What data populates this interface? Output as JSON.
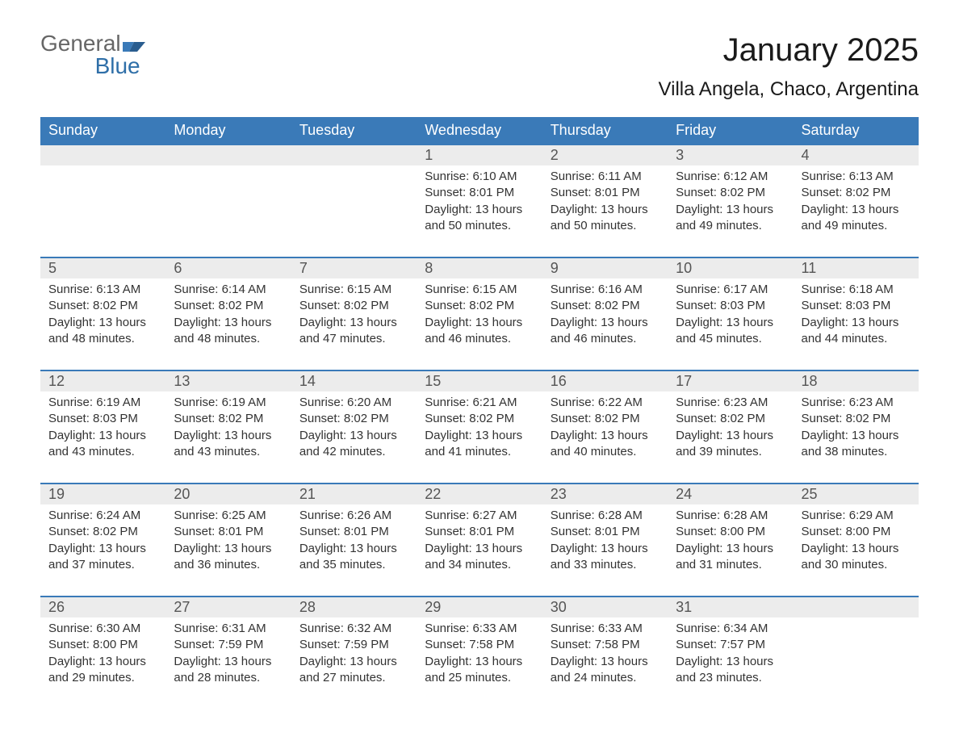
{
  "brand": {
    "name_gray": "General",
    "name_blue": "Blue"
  },
  "title": "January 2025",
  "location": "Villa Angela, Chaco, Argentina",
  "colors": {
    "header_bg": "#3a7ab8",
    "header_text": "#ffffff",
    "daynum_bg": "#ececec",
    "daynum_text": "#555555",
    "body_text": "#333333",
    "rule": "#3a7ab8",
    "page_bg": "#ffffff"
  },
  "typography": {
    "title_fontsize": 40,
    "location_fontsize": 24,
    "header_fontsize": 18,
    "daynum_fontsize": 18,
    "cell_fontsize": 15
  },
  "day_headers": [
    "Sunday",
    "Monday",
    "Tuesday",
    "Wednesday",
    "Thursday",
    "Friday",
    "Saturday"
  ],
  "weeks": [
    [
      null,
      null,
      null,
      {
        "n": "1",
        "sunrise": "6:10 AM",
        "sunset": "8:01 PM",
        "daylight": "13 hours and 50 minutes."
      },
      {
        "n": "2",
        "sunrise": "6:11 AM",
        "sunset": "8:01 PM",
        "daylight": "13 hours and 50 minutes."
      },
      {
        "n": "3",
        "sunrise": "6:12 AM",
        "sunset": "8:02 PM",
        "daylight": "13 hours and 49 minutes."
      },
      {
        "n": "4",
        "sunrise": "6:13 AM",
        "sunset": "8:02 PM",
        "daylight": "13 hours and 49 minutes."
      }
    ],
    [
      {
        "n": "5",
        "sunrise": "6:13 AM",
        "sunset": "8:02 PM",
        "daylight": "13 hours and 48 minutes."
      },
      {
        "n": "6",
        "sunrise": "6:14 AM",
        "sunset": "8:02 PM",
        "daylight": "13 hours and 48 minutes."
      },
      {
        "n": "7",
        "sunrise": "6:15 AM",
        "sunset": "8:02 PM",
        "daylight": "13 hours and 47 minutes."
      },
      {
        "n": "8",
        "sunrise": "6:15 AM",
        "sunset": "8:02 PM",
        "daylight": "13 hours and 46 minutes."
      },
      {
        "n": "9",
        "sunrise": "6:16 AM",
        "sunset": "8:02 PM",
        "daylight": "13 hours and 46 minutes."
      },
      {
        "n": "10",
        "sunrise": "6:17 AM",
        "sunset": "8:03 PM",
        "daylight": "13 hours and 45 minutes."
      },
      {
        "n": "11",
        "sunrise": "6:18 AM",
        "sunset": "8:03 PM",
        "daylight": "13 hours and 44 minutes."
      }
    ],
    [
      {
        "n": "12",
        "sunrise": "6:19 AM",
        "sunset": "8:03 PM",
        "daylight": "13 hours and 43 minutes."
      },
      {
        "n": "13",
        "sunrise": "6:19 AM",
        "sunset": "8:02 PM",
        "daylight": "13 hours and 43 minutes."
      },
      {
        "n": "14",
        "sunrise": "6:20 AM",
        "sunset": "8:02 PM",
        "daylight": "13 hours and 42 minutes."
      },
      {
        "n": "15",
        "sunrise": "6:21 AM",
        "sunset": "8:02 PM",
        "daylight": "13 hours and 41 minutes."
      },
      {
        "n": "16",
        "sunrise": "6:22 AM",
        "sunset": "8:02 PM",
        "daylight": "13 hours and 40 minutes."
      },
      {
        "n": "17",
        "sunrise": "6:23 AM",
        "sunset": "8:02 PM",
        "daylight": "13 hours and 39 minutes."
      },
      {
        "n": "18",
        "sunrise": "6:23 AM",
        "sunset": "8:02 PM",
        "daylight": "13 hours and 38 minutes."
      }
    ],
    [
      {
        "n": "19",
        "sunrise": "6:24 AM",
        "sunset": "8:02 PM",
        "daylight": "13 hours and 37 minutes."
      },
      {
        "n": "20",
        "sunrise": "6:25 AM",
        "sunset": "8:01 PM",
        "daylight": "13 hours and 36 minutes."
      },
      {
        "n": "21",
        "sunrise": "6:26 AM",
        "sunset": "8:01 PM",
        "daylight": "13 hours and 35 minutes."
      },
      {
        "n": "22",
        "sunrise": "6:27 AM",
        "sunset": "8:01 PM",
        "daylight": "13 hours and 34 minutes."
      },
      {
        "n": "23",
        "sunrise": "6:28 AM",
        "sunset": "8:01 PM",
        "daylight": "13 hours and 33 minutes."
      },
      {
        "n": "24",
        "sunrise": "6:28 AM",
        "sunset": "8:00 PM",
        "daylight": "13 hours and 31 minutes."
      },
      {
        "n": "25",
        "sunrise": "6:29 AM",
        "sunset": "8:00 PM",
        "daylight": "13 hours and 30 minutes."
      }
    ],
    [
      {
        "n": "26",
        "sunrise": "6:30 AM",
        "sunset": "8:00 PM",
        "daylight": "13 hours and 29 minutes."
      },
      {
        "n": "27",
        "sunrise": "6:31 AM",
        "sunset": "7:59 PM",
        "daylight": "13 hours and 28 minutes."
      },
      {
        "n": "28",
        "sunrise": "6:32 AM",
        "sunset": "7:59 PM",
        "daylight": "13 hours and 27 minutes."
      },
      {
        "n": "29",
        "sunrise": "6:33 AM",
        "sunset": "7:58 PM",
        "daylight": "13 hours and 25 minutes."
      },
      {
        "n": "30",
        "sunrise": "6:33 AM",
        "sunset": "7:58 PM",
        "daylight": "13 hours and 24 minutes."
      },
      {
        "n": "31",
        "sunrise": "6:34 AM",
        "sunset": "7:57 PM",
        "daylight": "13 hours and 23 minutes."
      },
      null
    ]
  ],
  "labels": {
    "sunrise": "Sunrise: ",
    "sunset": "Sunset: ",
    "daylight": "Daylight: "
  }
}
